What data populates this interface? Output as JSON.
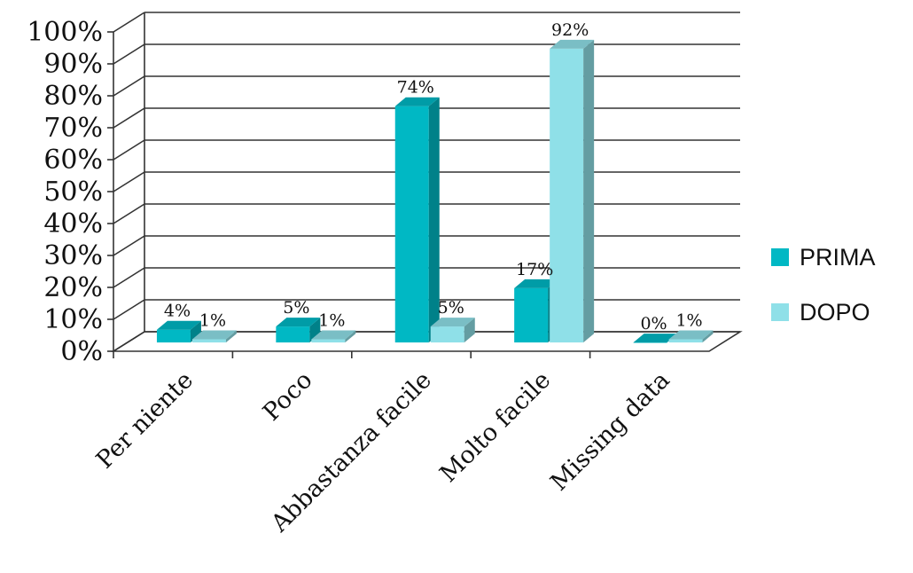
{
  "chart_data": {
    "type": "bar",
    "categories": [
      "Per niente",
      "Poco",
      "Abbastanza facile",
      "Molto facile",
      "Missing data"
    ],
    "series": [
      {
        "name": "PRIMA",
        "values": [
          4,
          5,
          74,
          17,
          0
        ],
        "labels": [
          "4%",
          "5%",
          "74%",
          "17%",
          "0%"
        ],
        "color": "#00b8c4"
      },
      {
        "name": "DOPO",
        "values": [
          1,
          1,
          5,
          92,
          1
        ],
        "labels": [
          "1%",
          "1%",
          "5%",
          "92%",
          "1%"
        ],
        "color": "#8fe0e8"
      }
    ],
    "y_ticks": [
      "0%",
      "10%",
      "20%",
      "30%",
      "40%",
      "50%",
      "60%",
      "70%",
      "80%",
      "90%",
      "100%"
    ],
    "ylim": [
      0,
      100
    ],
    "grid": true,
    "three_d": true,
    "legend_position": "right"
  }
}
